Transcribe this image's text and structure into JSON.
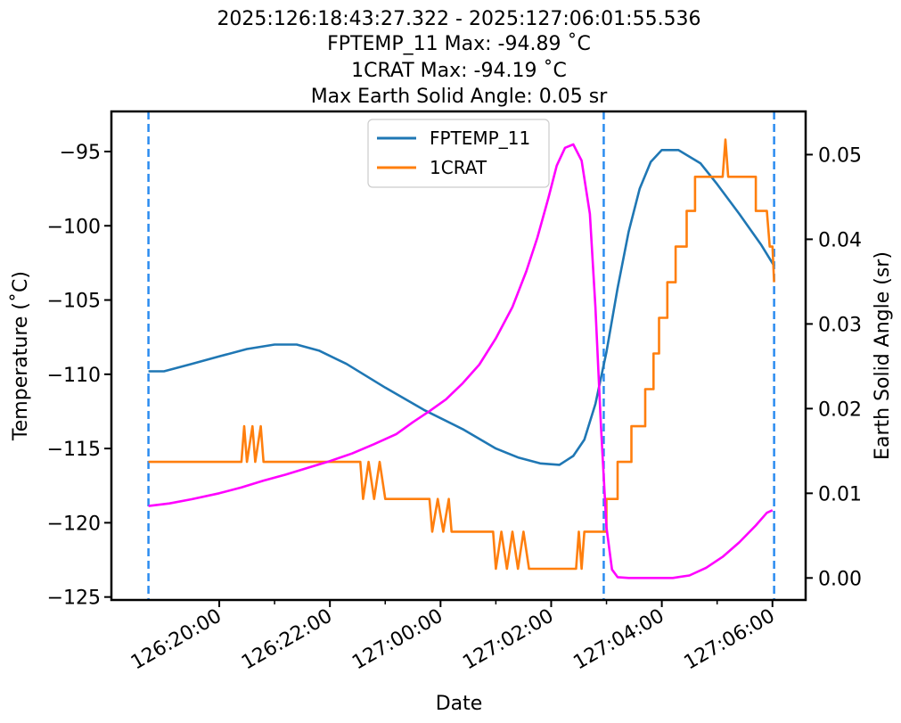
{
  "chart_data": {
    "type": "line",
    "title_lines": [
      "2025:126:18:43:27.322 - 2025:127:06:01:55.536",
      "FPTEMP_11 Max: -94.89 ˚C",
      "1CRAT Max: -94.19 ˚C",
      "Max Earth Solid Angle: 0.05 sr"
    ],
    "xlabel": "Date",
    "ylabel": "Temperature (˚C)",
    "y2label": "Earth Solid Angle (sr)",
    "x_ticks": [
      "126:20:00",
      "126:22:00",
      "127:00:00",
      "127:02:00",
      "127:04:00",
      "127:06:00"
    ],
    "x_tick_hours": [
      20,
      22,
      24,
      26,
      28,
      30
    ],
    "x_minor_tick_hours": [
      21,
      23,
      25,
      27,
      29
    ],
    "xlim_hours": [
      18.05,
      30.6
    ],
    "ylim": [
      -125.2,
      -92.3
    ],
    "y_ticks": [
      -95,
      -100,
      -105,
      -110,
      -115,
      -120,
      -125
    ],
    "y_tick_labels": [
      "−95",
      "−100",
      "−105",
      "−110",
      "−115",
      "−120",
      "−125"
    ],
    "y2lim": [
      -0.0026,
      0.0551
    ],
    "y2_ticks": [
      0.0,
      0.01,
      0.02,
      0.03,
      0.04,
      0.05
    ],
    "y2_tick_labels": [
      "0.00",
      "0.01",
      "0.02",
      "0.03",
      "0.04",
      "0.05"
    ],
    "vlines_hours": [
      18.72,
      26.95,
      30.03
    ],
    "legend_position": "upper center",
    "series": [
      {
        "name": "FPTEMP_11",
        "axis": "left",
        "color": "#1f77b4",
        "points": [
          [
            18.72,
            -109.8
          ],
          [
            18.8,
            -109.8
          ],
          [
            19.0,
            -109.8
          ],
          [
            19.5,
            -109.3
          ],
          [
            20.0,
            -108.8
          ],
          [
            20.5,
            -108.3
          ],
          [
            21.0,
            -108.0
          ],
          [
            21.4,
            -108.0
          ],
          [
            21.8,
            -108.4
          ],
          [
            22.3,
            -109.3
          ],
          [
            23.0,
            -110.9
          ],
          [
            23.7,
            -112.4
          ],
          [
            24.4,
            -113.7
          ],
          [
            25.0,
            -115.0
          ],
          [
            25.4,
            -115.6
          ],
          [
            25.8,
            -116.0
          ],
          [
            26.15,
            -116.1
          ],
          [
            26.4,
            -115.5
          ],
          [
            26.6,
            -114.4
          ],
          [
            26.8,
            -112.0
          ],
          [
            27.0,
            -108.5
          ],
          [
            27.2,
            -104.2
          ],
          [
            27.4,
            -100.4
          ],
          [
            27.6,
            -97.5
          ],
          [
            27.8,
            -95.7
          ],
          [
            28.0,
            -94.9
          ],
          [
            28.3,
            -94.9
          ],
          [
            28.7,
            -95.8
          ],
          [
            29.0,
            -97.2
          ],
          [
            29.4,
            -99.2
          ],
          [
            29.8,
            -101.3
          ],
          [
            30.03,
            -102.7
          ]
        ]
      },
      {
        "name": "1CRAT",
        "axis": "left",
        "color": "#ff7f0e",
        "points": [
          [
            18.72,
            -115.9
          ],
          [
            20.4,
            -115.9
          ],
          [
            20.45,
            -113.5
          ],
          [
            20.5,
            -115.9
          ],
          [
            20.6,
            -113.5
          ],
          [
            20.65,
            -115.9
          ],
          [
            20.75,
            -113.5
          ],
          [
            20.8,
            -115.9
          ],
          [
            22.55,
            -115.9
          ],
          [
            22.6,
            -118.4
          ],
          [
            22.7,
            -115.9
          ],
          [
            22.8,
            -118.4
          ],
          [
            22.9,
            -115.9
          ],
          [
            23.0,
            -118.4
          ],
          [
            23.8,
            -118.4
          ],
          [
            23.85,
            -120.6
          ],
          [
            23.95,
            -118.4
          ],
          [
            24.05,
            -120.6
          ],
          [
            24.15,
            -118.4
          ],
          [
            24.2,
            -120.6
          ],
          [
            24.95,
            -120.6
          ],
          [
            25.0,
            -123.1
          ],
          [
            25.1,
            -120.6
          ],
          [
            25.2,
            -123.1
          ],
          [
            25.3,
            -120.6
          ],
          [
            25.4,
            -123.1
          ],
          [
            25.5,
            -120.6
          ],
          [
            25.6,
            -123.1
          ],
          [
            26.45,
            -123.1
          ],
          [
            26.5,
            -120.6
          ],
          [
            26.55,
            -123.1
          ],
          [
            26.6,
            -120.6
          ],
          [
            27.0,
            -120.6
          ],
          [
            27.0,
            -118.4
          ],
          [
            27.2,
            -118.4
          ],
          [
            27.2,
            -115.9
          ],
          [
            27.45,
            -115.9
          ],
          [
            27.45,
            -113.5
          ],
          [
            27.7,
            -113.5
          ],
          [
            27.7,
            -111.0
          ],
          [
            27.85,
            -111.0
          ],
          [
            27.85,
            -108.6
          ],
          [
            27.95,
            -108.6
          ],
          [
            27.95,
            -106.2
          ],
          [
            28.1,
            -106.2
          ],
          [
            28.1,
            -103.8
          ],
          [
            28.25,
            -103.8
          ],
          [
            28.25,
            -101.4
          ],
          [
            28.45,
            -101.4
          ],
          [
            28.45,
            -99.0
          ],
          [
            28.6,
            -99.0
          ],
          [
            28.6,
            -96.7
          ],
          [
            29.1,
            -96.7
          ],
          [
            29.15,
            -94.2
          ],
          [
            29.2,
            -96.7
          ],
          [
            29.7,
            -96.7
          ],
          [
            29.7,
            -99.0
          ],
          [
            29.9,
            -99.0
          ],
          [
            29.95,
            -101.4
          ],
          [
            30.0,
            -101.4
          ],
          [
            30.03,
            -103.8
          ]
        ]
      },
      {
        "name": "Earth Solid Angle",
        "axis": "right",
        "color": "#ff00ff",
        "points": [
          [
            18.72,
            0.0085
          ],
          [
            19.1,
            0.0088
          ],
          [
            19.5,
            0.0093
          ],
          [
            20.0,
            0.01
          ],
          [
            20.4,
            0.0107
          ],
          [
            20.8,
            0.0115
          ],
          [
            21.2,
            0.0122
          ],
          [
            21.6,
            0.013
          ],
          [
            22.0,
            0.0138
          ],
          [
            22.4,
            0.0147
          ],
          [
            22.8,
            0.0158
          ],
          [
            23.2,
            0.017
          ],
          [
            23.5,
            0.0184
          ],
          [
            23.8,
            0.0197
          ],
          [
            24.1,
            0.0211
          ],
          [
            24.4,
            0.023
          ],
          [
            24.7,
            0.0252
          ],
          [
            25.0,
            0.0283
          ],
          [
            25.3,
            0.032
          ],
          [
            25.55,
            0.0362
          ],
          [
            25.75,
            0.0402
          ],
          [
            25.95,
            0.0449
          ],
          [
            26.1,
            0.0487
          ],
          [
            26.25,
            0.0508
          ],
          [
            26.4,
            0.0512
          ],
          [
            26.55,
            0.0493
          ],
          [
            26.7,
            0.043
          ],
          [
            26.8,
            0.032
          ],
          [
            26.9,
            0.018
          ],
          [
            27.0,
            0.006
          ],
          [
            27.1,
            0.001
          ],
          [
            27.2,
            0.0001
          ],
          [
            27.4,
            0.0
          ],
          [
            27.8,
            0.0
          ],
          [
            28.2,
            0.0
          ],
          [
            28.5,
            0.0003
          ],
          [
            28.8,
            0.0012
          ],
          [
            29.1,
            0.0025
          ],
          [
            29.4,
            0.0042
          ],
          [
            29.7,
            0.0062
          ],
          [
            29.9,
            0.0077
          ],
          [
            30.0,
            0.008
          ]
        ]
      }
    ]
  }
}
